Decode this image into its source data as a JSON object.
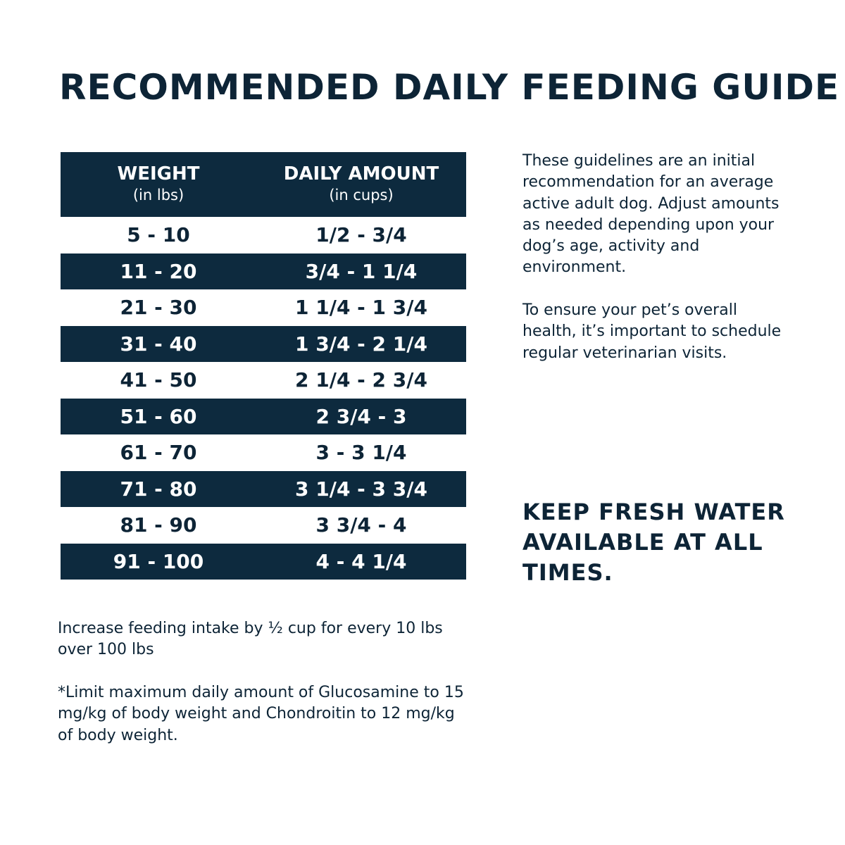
{
  "title": "RECOMMENDED DAILY FEEDING GUIDE",
  "table": {
    "header": {
      "weight_label": "WEIGHT",
      "weight_unit": "(in lbs)",
      "amount_label": "DAILY AMOUNT",
      "amount_unit": "(in cups)"
    },
    "rows": [
      {
        "weight": "5 - 10",
        "amount": "1/2 - 3/4"
      },
      {
        "weight": "11 - 20",
        "amount": "3/4 - 1 1/4"
      },
      {
        "weight": "21 - 30",
        "amount": "1 1/4 - 1 3/4"
      },
      {
        "weight": "31 - 40",
        "amount": "1 3/4 - 2 1/4"
      },
      {
        "weight": "41 - 50",
        "amount": "2 1/4 - 2 3/4"
      },
      {
        "weight": "51 - 60",
        "amount": "2 3/4 - 3"
      },
      {
        "weight": "61 - 70",
        "amount": "3 - 3 1/4"
      },
      {
        "weight": "71 - 80",
        "amount": "3 1/4 - 3 3/4"
      },
      {
        "weight": "81 - 90",
        "amount": "3 3/4 - 4"
      },
      {
        "weight": "91 - 100",
        "amount": "4 - 4 1/4"
      }
    ]
  },
  "sidebar": {
    "guideline_text": "These guidelines are an initial recommendation for an average active adult dog. Adjust amounts as needed depending upon your dog’s age, activity and environment.",
    "health_text": "To ensure your pet’s overall health, it’s important to schedule regular veterinarian visits.",
    "water_callout": "KEEP FRESH WATER AVAILABLE AT ALL TIMES."
  },
  "footer": {
    "increase_note": "Increase feeding intake by ½ cup for every 10 lbs over 100 lbs",
    "limit_note": "*Limit maximum daily amount of Glucosamine to 15 mg/kg of body weight and Chondroitin to 12 mg/kg of body weight."
  },
  "colors": {
    "navy": "#0d2a3e",
    "text": "#0d2436",
    "background": "#ffffff"
  }
}
